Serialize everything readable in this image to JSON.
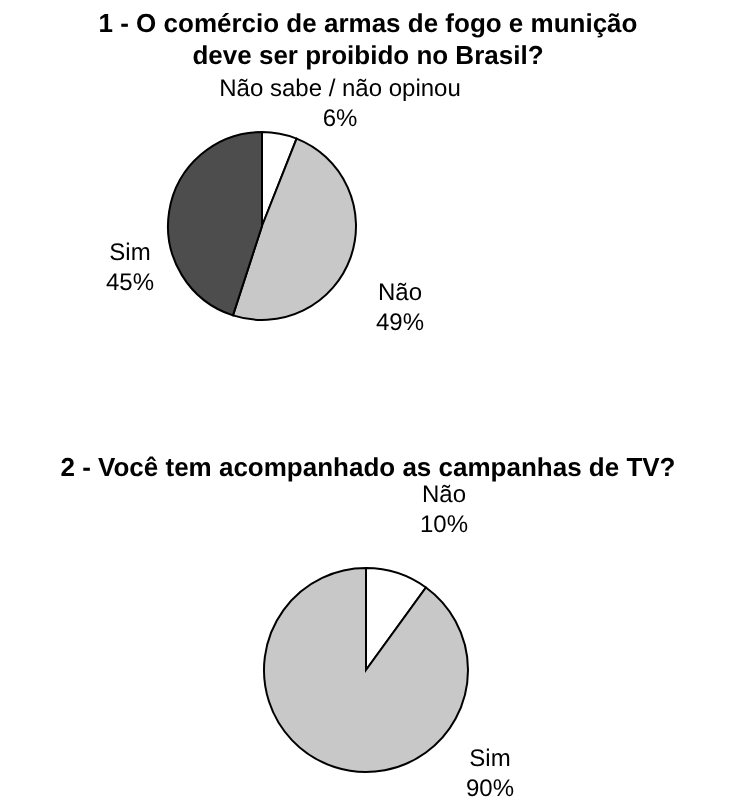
{
  "chart_data": [
    {
      "type": "pie",
      "title": "1 - O comércio de armas de fogo e munição\ndeve ser proibido no Brasil?",
      "categories": [
        "Não sabe / não opinou",
        "Não",
        "Sim"
      ],
      "values": [
        6,
        49,
        45
      ],
      "colors": [
        "#ffffff",
        "#c8c8c8",
        "#4d4d4d"
      ],
      "value_labels": [
        "6%",
        "49%",
        "45%"
      ],
      "legend": false
    },
    {
      "type": "pie",
      "title": "2 - Você tem acompanhado as campanhas de TV?",
      "categories": [
        "Não",
        "Sim"
      ],
      "values": [
        10,
        90
      ],
      "colors": [
        "#ffffff",
        "#c8c8c8"
      ],
      "value_labels": [
        "10%",
        "90%"
      ],
      "legend": false
    }
  ]
}
